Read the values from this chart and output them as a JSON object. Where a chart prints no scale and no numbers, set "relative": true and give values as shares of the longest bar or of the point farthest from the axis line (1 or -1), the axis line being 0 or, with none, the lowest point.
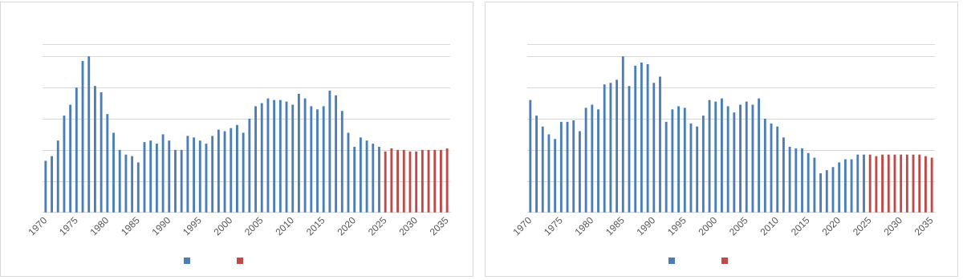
{
  "chart_data": [
    {
      "type": "bar",
      "relative": true,
      "grid": "y",
      "categories": [
        "1970",
        null,
        null,
        null,
        null,
        "1975",
        null,
        null,
        null,
        null,
        "1980",
        null,
        null,
        null,
        null,
        "1985",
        null,
        null,
        null,
        null,
        "1990",
        null,
        null,
        null,
        null,
        "1995",
        null,
        null,
        null,
        null,
        "2000",
        null,
        null,
        null,
        null,
        "2005",
        null,
        null,
        null,
        null,
        "2010",
        null,
        null,
        null,
        null,
        "2015",
        null,
        null,
        null,
        null,
        "2020",
        null,
        null,
        null,
        null,
        "2025",
        null,
        null,
        null,
        null,
        "2030",
        null,
        null,
        null,
        null,
        "2035"
      ],
      "series": [
        {
          "color": "#4a7ebb",
          "values": [
            0.33,
            0.36,
            0.46,
            0.62,
            0.69,
            0.8,
            0.97,
            1,
            0.81,
            0.77,
            0.63,
            0.51,
            0.4,
            0.37,
            0.36,
            0.32,
            0.45,
            0.46,
            0.44,
            0.5,
            0.46,
            0.4,
            0.4,
            0.49,
            0.48,
            0.46,
            0.44,
            0.49,
            0.53,
            0.52,
            0.54,
            0.56,
            0.51,
            0.6,
            0.68,
            0.7,
            0.73,
            0.72,
            0.72,
            0.71,
            0.69,
            0.76,
            0.73,
            0.68,
            0.66,
            0.68,
            0.78,
            0.75,
            0.65,
            0.51,
            0.42,
            0.48,
            0.46,
            0.44,
            0.42,
            null,
            null,
            null,
            null,
            null,
            null,
            null,
            null,
            null,
            null,
            null
          ]
        },
        {
          "color": "#be4b48",
          "values": [
            null,
            null,
            null,
            null,
            null,
            null,
            null,
            null,
            null,
            null,
            null,
            null,
            null,
            null,
            null,
            null,
            null,
            null,
            null,
            null,
            null,
            null,
            null,
            null,
            null,
            null,
            null,
            null,
            null,
            null,
            null,
            null,
            null,
            null,
            null,
            null,
            null,
            null,
            null,
            null,
            null,
            null,
            null,
            null,
            null,
            null,
            null,
            null,
            null,
            null,
            null,
            null,
            null,
            null,
            null,
            0.39,
            0.41,
            0.4,
            0.4,
            0.39,
            0.39,
            0.4,
            0.4,
            0.4,
            0.4,
            0.41
          ]
        }
      ]
    },
    {
      "type": "bar",
      "relative": true,
      "grid": "y",
      "categories": [
        "1970",
        null,
        null,
        null,
        null,
        "1975",
        null,
        null,
        null,
        null,
        "1980",
        null,
        null,
        null,
        null,
        "1985",
        null,
        null,
        null,
        null,
        "1990",
        null,
        null,
        null,
        null,
        "1995",
        null,
        null,
        null,
        null,
        "2000",
        null,
        null,
        null,
        null,
        "2005",
        null,
        null,
        null,
        null,
        "2010",
        null,
        null,
        null,
        null,
        "2015",
        null,
        null,
        null,
        null,
        "2020",
        null,
        null,
        null,
        null,
        "2025",
        null,
        null,
        null,
        null,
        "2030",
        null,
        null,
        null,
        null,
        "2035"
      ],
      "series": [
        {
          "color": "#4a7ebb",
          "values": [
            0.72,
            0.62,
            0.55,
            0.5,
            0.47,
            0.58,
            0.58,
            0.59,
            0.52,
            0.67,
            0.69,
            0.66,
            0.82,
            0.83,
            0.85,
            1,
            0.81,
            0.94,
            0.96,
            0.95,
            0.83,
            0.87,
            0.58,
            0.66,
            0.68,
            0.67,
            0.57,
            0.55,
            0.62,
            0.72,
            0.71,
            0.73,
            0.68,
            0.64,
            0.69,
            0.71,
            0.69,
            0.73,
            0.6,
            0.57,
            0.55,
            0.48,
            0.42,
            0.41,
            0.41,
            0.38,
            0.35,
            0.25,
            0.27,
            0.29,
            0.32,
            0.34,
            0.34,
            0.37,
            0.37,
            null,
            null,
            null,
            null,
            null,
            null,
            null,
            null,
            null,
            null,
            null
          ]
        },
        {
          "color": "#be4b48",
          "values": [
            null,
            null,
            null,
            null,
            null,
            null,
            null,
            null,
            null,
            null,
            null,
            null,
            null,
            null,
            null,
            null,
            null,
            null,
            null,
            null,
            null,
            null,
            null,
            null,
            null,
            null,
            null,
            null,
            null,
            null,
            null,
            null,
            null,
            null,
            null,
            null,
            null,
            null,
            null,
            null,
            null,
            null,
            null,
            null,
            null,
            null,
            null,
            null,
            null,
            null,
            null,
            null,
            null,
            null,
            null,
            0.37,
            0.36,
            0.37,
            0.37,
            0.37,
            0.37,
            0.37,
            0.37,
            0.37,
            0.36,
            0.35
          ]
        }
      ]
    }
  ]
}
